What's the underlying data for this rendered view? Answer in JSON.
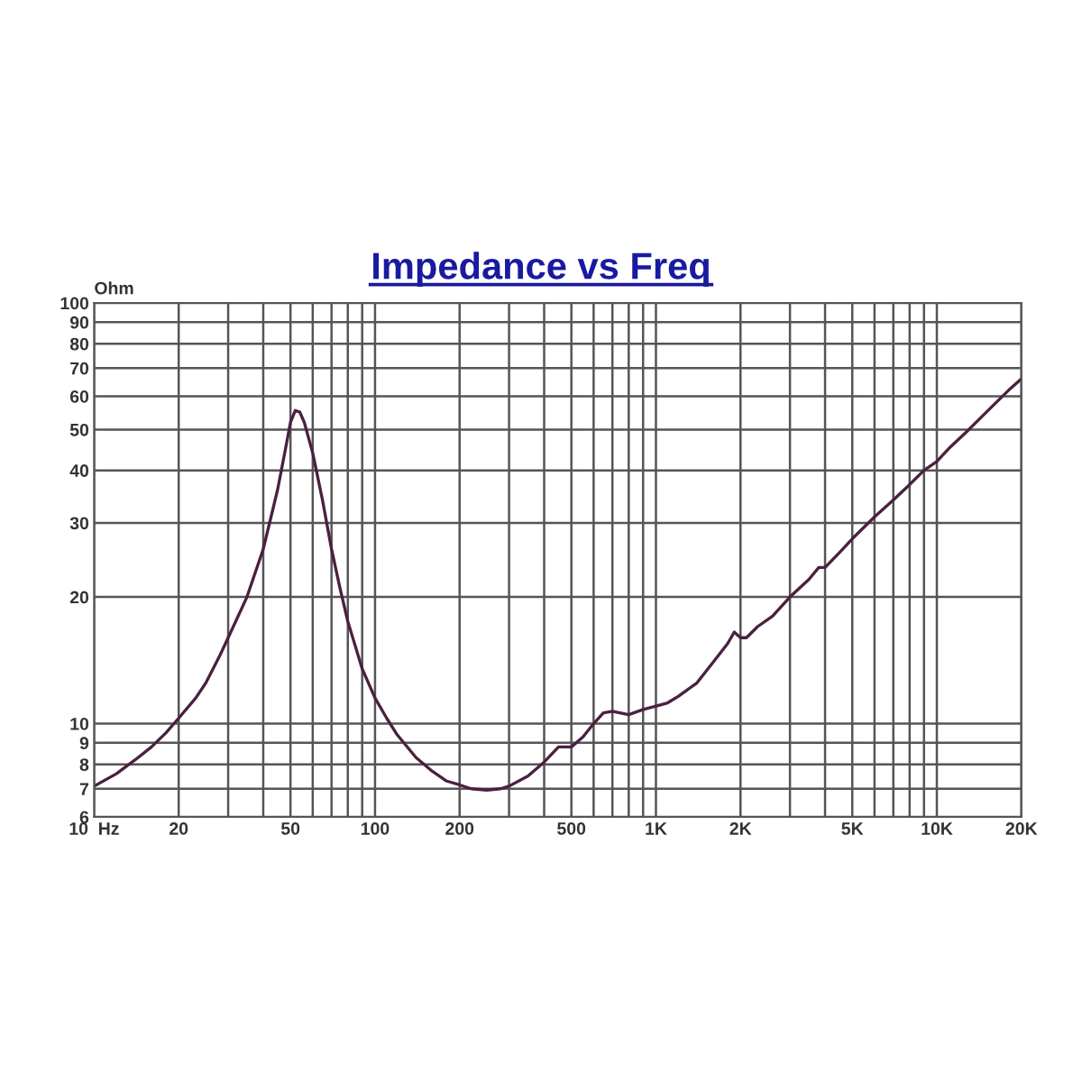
{
  "chart_data": {
    "type": "line",
    "title": "Impedance vs Freq",
    "ylabel": "Ohm",
    "log": "xy",
    "grid": true,
    "marker": "none",
    "line_style": "solid",
    "xlim": [
      10,
      20000
    ],
    "ylim": [
      6,
      100
    ],
    "xticks": [
      {
        "value": 10,
        "label": "10  Hz"
      },
      20,
      {
        "value": 30,
        "label": null
      },
      {
        "value": 40,
        "label": null
      },
      50,
      {
        "value": 60,
        "label": null
      },
      {
        "value": 70,
        "label": null
      },
      {
        "value": 80,
        "label": null
      },
      {
        "value": 90,
        "label": null
      },
      100,
      200,
      {
        "value": 300,
        "label": null
      },
      {
        "value": 400,
        "label": null
      },
      500,
      {
        "value": 600,
        "label": null
      },
      {
        "value": 700,
        "label": null
      },
      {
        "value": 800,
        "label": null
      },
      {
        "value": 900,
        "label": null
      },
      {
        "value": 1000,
        "label": "1K"
      },
      {
        "value": 2000,
        "label": "2K"
      },
      {
        "value": 3000,
        "label": null
      },
      {
        "value": 4000,
        "label": null
      },
      {
        "value": 5000,
        "label": "5K"
      },
      {
        "value": 6000,
        "label": null
      },
      {
        "value": 7000,
        "label": null
      },
      {
        "value": 8000,
        "label": null
      },
      {
        "value": 9000,
        "label": null
      },
      {
        "value": 10000,
        "label": "10K"
      },
      {
        "value": 20000,
        "label": "20K"
      }
    ],
    "yticks": [
      6,
      7,
      8,
      9,
      10,
      20,
      30,
      40,
      50,
      60,
      70,
      80,
      90,
      100
    ],
    "x": [
      10,
      12,
      14,
      16,
      18,
      20,
      23,
      25,
      28,
      30,
      35,
      40,
      45,
      48,
      50,
      52,
      54,
      56,
      60,
      65,
      70,
      75,
      80,
      90,
      100,
      110,
      120,
      140,
      160,
      180,
      200,
      220,
      250,
      280,
      300,
      350,
      400,
      450,
      500,
      550,
      600,
      650,
      700,
      800,
      900,
      1000,
      1100,
      1200,
      1400,
      1600,
      1800,
      1900,
      2000,
      2100,
      2300,
      2600,
      3000,
      3500,
      3800,
      4000,
      4500,
      5000,
      6000,
      7000,
      8000,
      9000,
      10000,
      11000,
      13000,
      15000,
      18000,
      20000
    ],
    "series": [
      {
        "color": "#4a2040",
        "values": [
          7.1,
          7.6,
          8.2,
          8.8,
          9.5,
          10.3,
          11.5,
          12.5,
          14.5,
          16,
          20,
          26,
          36,
          45,
          52,
          55.5,
          55,
          52,
          44,
          34,
          26,
          21,
          17.5,
          13.5,
          11.5,
          10.3,
          9.4,
          8.3,
          7.7,
          7.3,
          7.15,
          7.0,
          6.95,
          7.0,
          7.1,
          7.5,
          8.1,
          8.8,
          8.8,
          9.3,
          10,
          10.6,
          10.7,
          10.5,
          10.8,
          11,
          11.2,
          11.6,
          12.5,
          14,
          15.5,
          16.5,
          16,
          16,
          17,
          18,
          20,
          22,
          23.5,
          23.5,
          25.5,
          27.5,
          31,
          34,
          37,
          40,
          42,
          45,
          50,
          55,
          62,
          66
        ]
      }
    ]
  }
}
